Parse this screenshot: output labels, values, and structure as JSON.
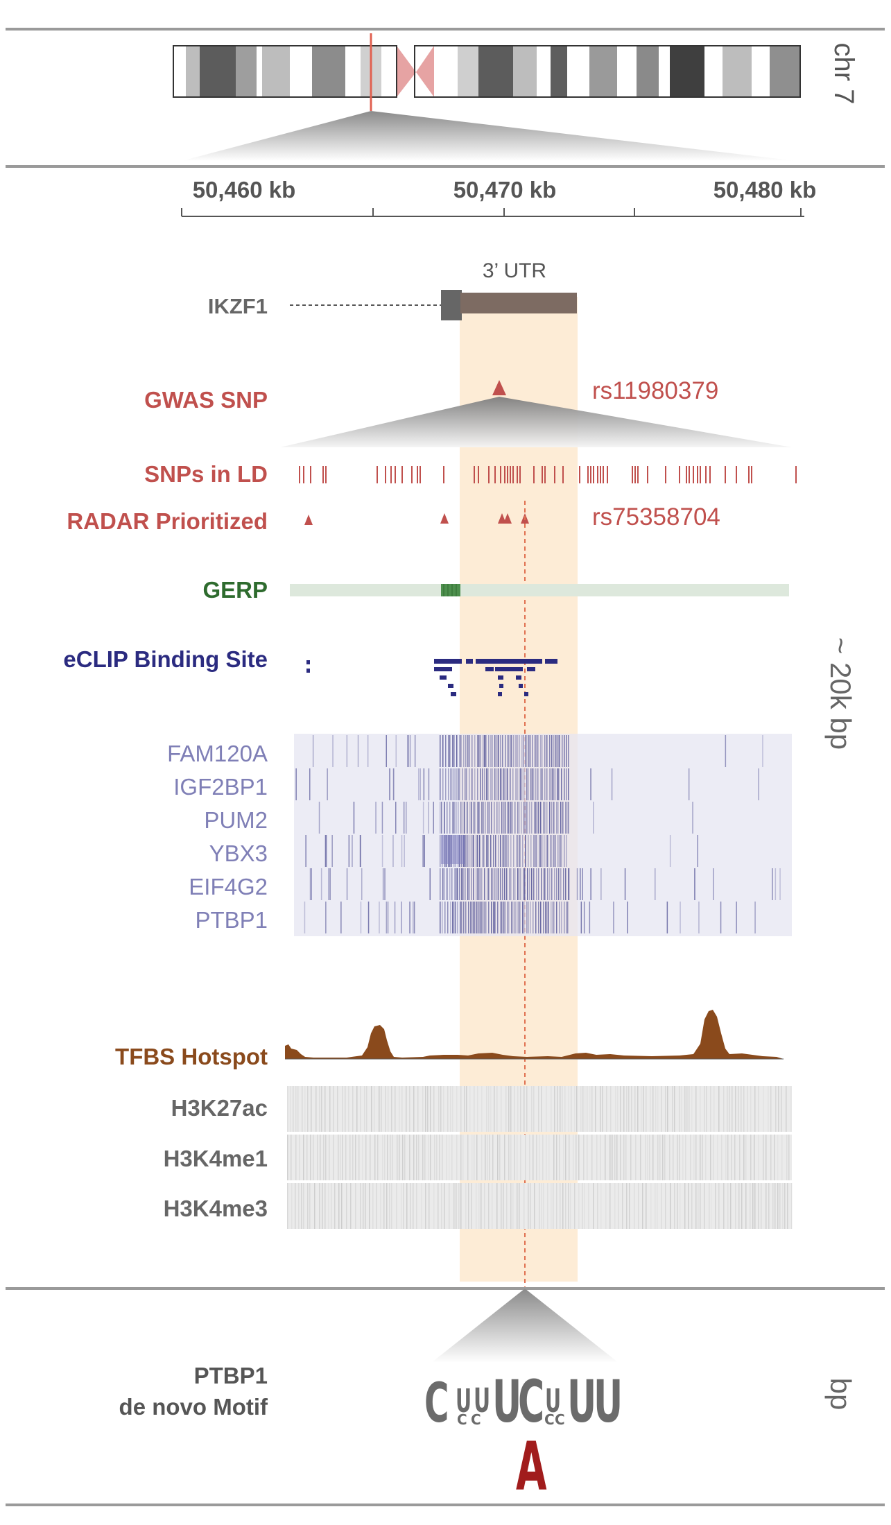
{
  "chromosome": {
    "label": "chr 7"
  },
  "scale": {
    "ticks": [
      "50,460 kb",
      "50,470 kb",
      "50,480 kb"
    ]
  },
  "gene": {
    "name": "IKZF1",
    "utr_label": "3’ UTR"
  },
  "tracks": {
    "gwas_snp": {
      "label": "GWAS SNP",
      "id": "rs11980379"
    },
    "snps_in_ld": {
      "label": "SNPs in LD"
    },
    "radar": {
      "label": "RADAR Prioritized",
      "id": "rs75358704"
    },
    "gerp": {
      "label": "GERP"
    },
    "eclip": {
      "label": "eCLIP Binding Site"
    },
    "rbp_tracks": [
      "FAM120A",
      "IGF2BP1",
      "PUM2",
      "YBX3",
      "EIF4G2",
      "PTBP1"
    ],
    "tfbs": {
      "label": "TFBS Hotspot"
    },
    "histone_tracks": [
      "H3K27ac",
      "H3K4me1",
      "H3K4me3"
    ]
  },
  "region_size": "~ 20k bp",
  "motif": {
    "title_line1": "PTBP1",
    "title_line2": "de novo Motif",
    "scale_label": "bp",
    "top_letters": [
      "C",
      "U",
      "U",
      "U",
      "C",
      "U",
      "U",
      "U"
    ],
    "small_letters": [
      "C",
      "C",
      "C",
      "C"
    ],
    "variant_letter": "A"
  },
  "colors": {
    "red": "#c0504d",
    "green": "#2e6b2e",
    "navy": "#2b2b80",
    "purple_text": "#7f7fb6",
    "brown": "#8a4a1c",
    "gray_text": "#666666",
    "highlight": "#fde9cf",
    "chrom_band_dark": "#555555",
    "variant": "#a11c1c"
  }
}
